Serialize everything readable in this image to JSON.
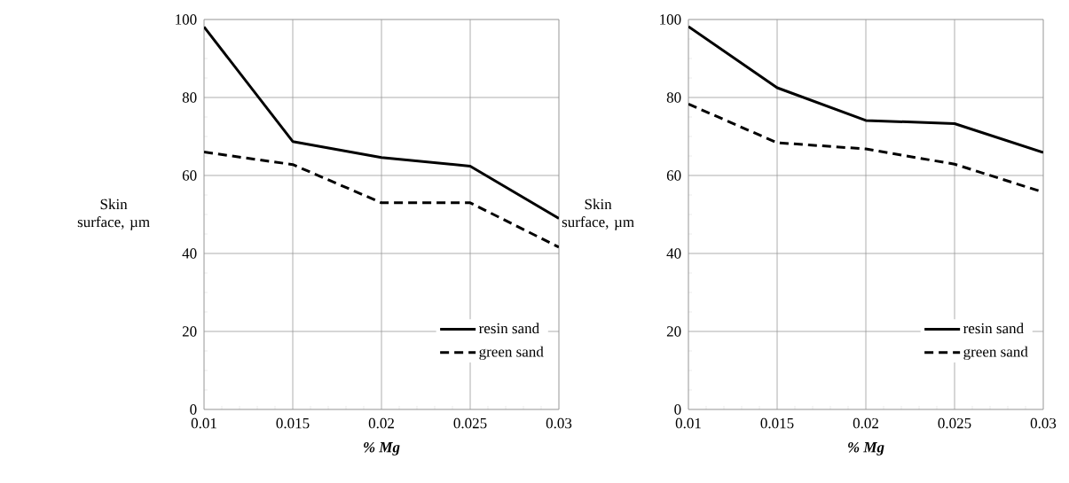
{
  "chart_data": [
    {
      "type": "line",
      "x": [
        0.01,
        0.015,
        0.02,
        0.025,
        0.03
      ],
      "xlim": [
        0.01,
        0.03
      ],
      "xticks": [
        0.01,
        0.015,
        0.02,
        0.025,
        0.03
      ],
      "ylim": [
        0,
        100
      ],
      "yticks": [
        0,
        20,
        40,
        60,
        80,
        100
      ],
      "xlabel": "% Mg",
      "ylabel": "Skin surface, µm",
      "grid": true,
      "legend": "bottom right",
      "series": [
        {
          "name": "resin sand",
          "color": "#000000",
          "line_style": "solid",
          "values": [
            98.1,
            68.7,
            64.6,
            62.4,
            49
          ]
        },
        {
          "name": "green sand",
          "color": "#000000",
          "line_style": "dashed",
          "values": [
            66,
            62.8,
            53,
            53,
            41.6
          ]
        }
      ]
    },
    {
      "type": "line",
      "x": [
        0.01,
        0.015,
        0.02,
        0.025,
        0.03
      ],
      "xlim": [
        0.01,
        0.03
      ],
      "xticks": [
        0.01,
        0.015,
        0.02,
        0.025,
        0.03
      ],
      "ylim": [
        0,
        100
      ],
      "yticks": [
        0,
        20,
        40,
        60,
        80,
        100
      ],
      "xlabel": "% Mg",
      "ylabel": "Skin surface, µm",
      "grid": true,
      "legend": "bottom right",
      "series": [
        {
          "name": "resin sand",
          "color": "#000000",
          "line_style": "solid",
          "values": [
            98.2,
            82.5,
            74.1,
            73.3,
            65.9
          ]
        },
        {
          "name": "green sand",
          "color": "#000000",
          "line_style": "dashed",
          "values": [
            78.3,
            68.4,
            66.8,
            62.9,
            55.7
          ]
        }
      ]
    }
  ]
}
